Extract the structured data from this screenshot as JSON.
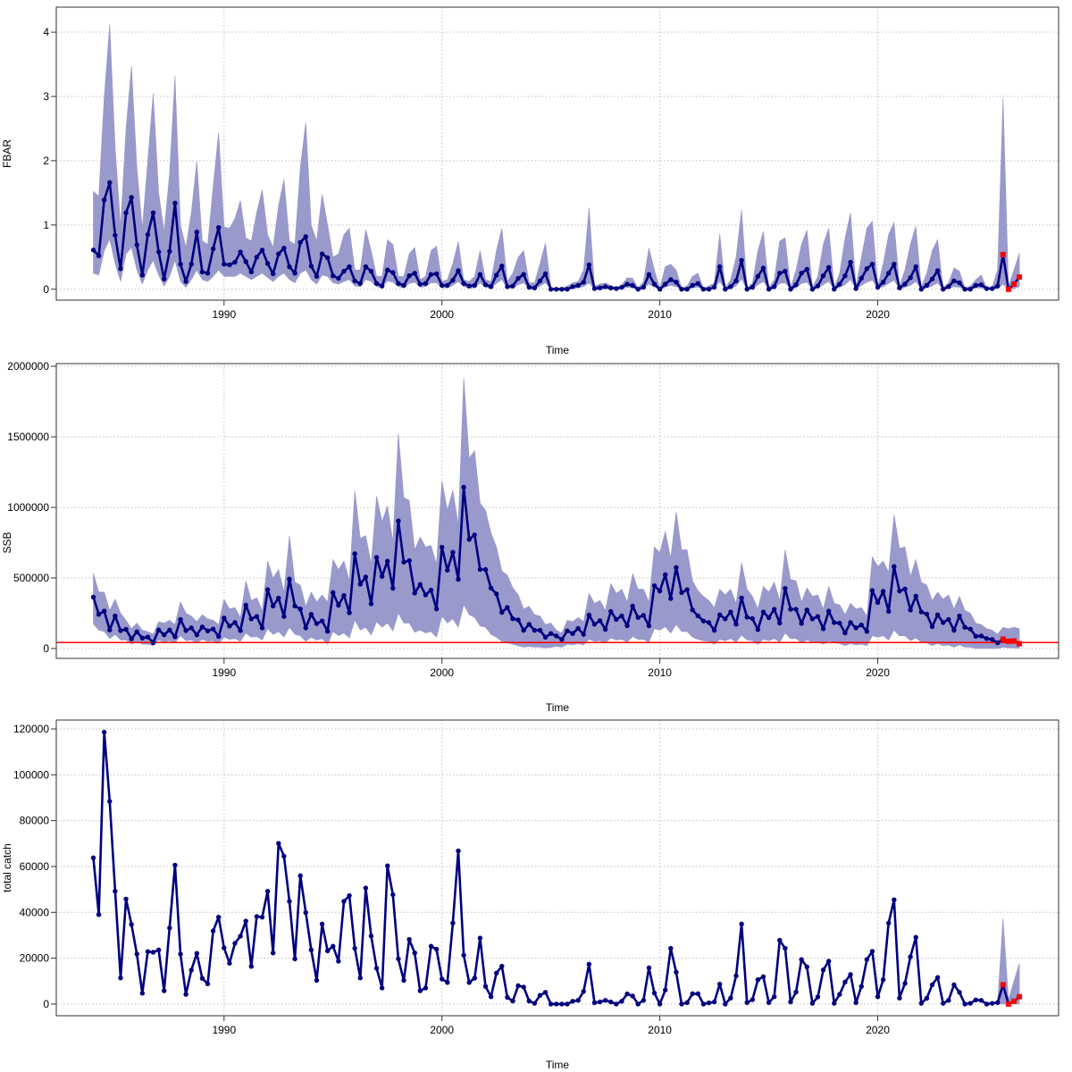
{
  "chart_data": [
    {
      "type": "line",
      "ylabel": "FBAR",
      "xlabel": "Time",
      "xlim": [
        1982.3,
        2028.3
      ],
      "ylim": [
        -0.17,
        4.39
      ],
      "xticks": [
        1990,
        2000,
        2010,
        2020
      ],
      "yticks": [
        0,
        1,
        2,
        3,
        4
      ],
      "grid": true,
      "time_start": 1984,
      "time_step": 0.25,
      "projection_from": 2025.75,
      "colors": {
        "line": "#000080",
        "band": "#9999cc",
        "projection": "#ff0000"
      },
      "values": [
        0.61,
        0.52,
        1.39,
        1.66,
        0.84,
        0.32,
        1.19,
        1.43,
        0.69,
        0.22,
        0.85,
        1.19,
        0.58,
        0.16,
        0.59,
        1.34,
        0.39,
        0.12,
        0.39,
        0.89,
        0.27,
        0.25,
        0.63,
        0.96,
        0.39,
        0.38,
        0.42,
        0.58,
        0.43,
        0.27,
        0.5,
        0.61,
        0.4,
        0.24,
        0.55,
        0.64,
        0.35,
        0.25,
        0.73,
        0.82,
        0.36,
        0.2,
        0.55,
        0.49,
        0.21,
        0.17,
        0.28,
        0.35,
        0.13,
        0.09,
        0.35,
        0.28,
        0.09,
        0.05,
        0.3,
        0.26,
        0.09,
        0.06,
        0.21,
        0.25,
        0.08,
        0.09,
        0.23,
        0.24,
        0.06,
        0.06,
        0.14,
        0.29,
        0.09,
        0.05,
        0.06,
        0.23,
        0.07,
        0.04,
        0.22,
        0.36,
        0.04,
        0.05,
        0.17,
        0.23,
        0.03,
        0.02,
        0.13,
        0.24,
        0,
        0,
        0,
        0,
        0.04,
        0.06,
        0.11,
        0.38,
        0.01,
        0.02,
        0.04,
        0.02,
        0.01,
        0.03,
        0.08,
        0.06,
        0,
        0.03,
        0.23,
        0.08,
        0,
        0.08,
        0.15,
        0.11,
        0,
        0,
        0.06,
        0.09,
        0,
        0,
        0.03,
        0.35,
        0,
        0.04,
        0.13,
        0.45,
        0,
        0.03,
        0.2,
        0.33,
        0,
        0.04,
        0.25,
        0.28,
        0,
        0.07,
        0.25,
        0.31,
        0,
        0.05,
        0.21,
        0.34,
        0,
        0.08,
        0.21,
        0.42,
        0.01,
        0.17,
        0.32,
        0.39,
        0.03,
        0.11,
        0.25,
        0.39,
        0.02,
        0.08,
        0.18,
        0.35,
        0,
        0.06,
        0.16,
        0.29,
        0,
        0.04,
        0.13,
        0.1,
        0,
        0,
        0.06,
        0.07,
        0.01,
        0.01,
        0.05,
        0.54,
        0,
        0.08,
        0.19
      ],
      "upper": [
        1.52,
        1.45,
        3.0,
        4.12,
        2.2,
        0.98,
        2.5,
        3.47,
        1.9,
        0.95,
        2.0,
        3.05,
        1.5,
        0.9,
        1.8,
        3.32,
        1.0,
        0.65,
        1.2,
        1.99,
        0.75,
        0.7,
        1.6,
        2.44,
        0.97,
        0.95,
        1.1,
        1.38,
        0.8,
        0.75,
        1.2,
        1.55,
        0.85,
        0.65,
        1.3,
        1.71,
        0.75,
        0.7,
        1.9,
        2.6,
        1.0,
        0.75,
        1.48,
        1.0,
        0.5,
        0.55,
        0.85,
        0.95,
        0.3,
        0.3,
        0.93,
        0.6,
        0.2,
        0.2,
        0.77,
        0.7,
        0.2,
        0.2,
        0.55,
        0.65,
        0.15,
        0.2,
        0.6,
        0.67,
        0.12,
        0.15,
        0.4,
        0.74,
        0.15,
        0.12,
        0.2,
        0.6,
        0.15,
        0.12,
        0.6,
        0.95,
        0.12,
        0.25,
        0.5,
        0.6,
        0.1,
        0.1,
        0.4,
        0.72,
        0.02,
        0.02,
        0.02,
        0.05,
        0.1,
        0.12,
        0.3,
        1.27,
        0.05,
        0.08,
        0.1,
        0.06,
        0.02,
        0.07,
        0.18,
        0.17,
        0.02,
        0.12,
        0.64,
        0.3,
        0.02,
        0.35,
        0.39,
        0.3,
        0.02,
        0.05,
        0.2,
        0.25,
        0.02,
        0.05,
        0.1,
        0.86,
        0.02,
        0.15,
        0.5,
        1.24,
        0.02,
        0.1,
        0.6,
        0.9,
        0.02,
        0.15,
        0.75,
        0.8,
        0.02,
        0.3,
        0.7,
        0.92,
        0.03,
        0.2,
        0.7,
        0.95,
        0.03,
        0.25,
        0.8,
        1.19,
        0.05,
        0.5,
        0.95,
        1.06,
        0.05,
        0.4,
        0.85,
        1.04,
        0.05,
        0.3,
        0.7,
        0.98,
        0.03,
        0.25,
        0.6,
        0.77,
        0.02,
        0.1,
        0.33,
        0.28,
        0.02,
        0.05,
        0.15,
        0.22,
        0.02,
        0.03,
        0.3,
        2.98,
        0.05,
        0.3,
        0.56
      ],
      "lower": [
        0.25,
        0.22,
        0.6,
        0.78,
        0.4,
        0.12,
        0.55,
        0.65,
        0.3,
        0.08,
        0.3,
        0.45,
        0.22,
        0.05,
        0.2,
        0.45,
        0.12,
        0.03,
        0.15,
        0.3,
        0.15,
        0.12,
        0.2,
        0.3,
        0.2,
        0.2,
        0.2,
        0.25,
        0.2,
        0.15,
        0.2,
        0.25,
        0.18,
        0.12,
        0.2,
        0.25,
        0.15,
        0.1,
        0.25,
        0.3,
        0.15,
        0.08,
        0.22,
        0.2,
        0.1,
        0.08,
        0.12,
        0.15,
        0.05,
        0.04,
        0.15,
        0.12,
        0.04,
        0.02,
        0.13,
        0.11,
        0.04,
        0.02,
        0.09,
        0.11,
        0.03,
        0.04,
        0.1,
        0.1,
        0.02,
        0.02,
        0.06,
        0.12,
        0.04,
        0.02,
        0.02,
        0.1,
        0.03,
        0.01,
        0.09,
        0.15,
        0.01,
        0.02,
        0.07,
        0.1,
        0.01,
        0,
        0.05,
        0.1,
        0,
        0,
        0,
        0,
        0.01,
        0.02,
        0.04,
        0.1,
        0,
        0,
        0.01,
        0,
        0,
        0.01,
        0.03,
        0.02,
        0,
        0.01,
        0.08,
        0.03,
        0,
        0.03,
        0.06,
        0.04,
        0,
        0,
        0.02,
        0.03,
        0,
        0,
        0.01,
        0.12,
        0,
        0.01,
        0.05,
        0.16,
        0,
        0.01,
        0.07,
        0.12,
        0,
        0.01,
        0.09,
        0.1,
        0,
        0.02,
        0.09,
        0.11,
        0,
        0.02,
        0.07,
        0.12,
        0,
        0.03,
        0.07,
        0.15,
        0,
        0.06,
        0.11,
        0.14,
        0.01,
        0.04,
        0.09,
        0.14,
        0,
        0.03,
        0.06,
        0.12,
        0,
        0.02,
        0.05,
        0.1,
        0,
        0.01,
        0.04,
        0.03,
        0,
        0,
        0.02,
        0.02,
        0,
        0,
        0.01,
        0.08,
        0,
        0.01,
        0.04
      ]
    },
    {
      "type": "line",
      "ylabel": "SSB",
      "xlabel": "Time",
      "xlim": [
        1982.3,
        2028.3
      ],
      "ylim": [
        -70000,
        2019000
      ],
      "xticks": [
        1990,
        2000,
        2010,
        2020
      ],
      "yticks": [
        0,
        500000,
        1000000,
        1500000,
        2000000
      ],
      "grid": true,
      "time_start": 1984,
      "time_step": 0.25,
      "projection_from": 2025.75,
      "reference_line": 42000,
      "colors": {
        "line": "#000080",
        "band": "#9999cc",
        "projection": "#ff0000",
        "reference": "#ff0000"
      },
      "values": [
        364000,
        242000,
        265000,
        131000,
        231000,
        127000,
        136000,
        68000,
        119000,
        74000,
        81000,
        42000,
        131000,
        97000,
        131000,
        83000,
        206000,
        127000,
        146000,
        97000,
        153000,
        125000,
        138000,
        85000,
        216000,
        159000,
        184000,
        127000,
        307000,
        210000,
        227000,
        146000,
        417000,
        301000,
        358000,
        227000,
        492000,
        301000,
        280000,
        146000,
        242000,
        176000,
        195000,
        122000,
        397000,
        306000,
        376000,
        253000,
        672000,
        456000,
        507000,
        317000,
        646000,
        511000,
        619000,
        427000,
        904000,
        612000,
        623000,
        393000,
        454000,
        380000,
        414000,
        281000,
        718000,
        555000,
        682000,
        490000,
        1143000,
        773000,
        805000,
        560000,
        560000,
        429000,
        387000,
        256000,
        291000,
        211000,
        203000,
        129000,
        171000,
        129000,
        129000,
        80000,
        106000,
        89000,
        64000,
        125000,
        106000,
        142000,
        100000,
        237000,
        172000,
        197000,
        136000,
        263000,
        206000,
        231000,
        161000,
        301000,
        220000,
        235000,
        161000,
        445000,
        407000,
        523000,
        354000,
        574000,
        396000,
        417000,
        273000,
        231000,
        195000,
        184000,
        129000,
        239000,
        210000,
        259000,
        172000,
        358000,
        222000,
        212000,
        134000,
        259000,
        218000,
        278000,
        180000,
        426000,
        278000,
        278000,
        178000,
        273000,
        210000,
        227000,
        140000,
        265000,
        184000,
        180000,
        110000,
        184000,
        146000,
        167000,
        121000,
        411000,
        326000,
        405000,
        263000,
        581000,
        407000,
        422000,
        273000,
        371000,
        259000,
        244000,
        155000,
        239000,
        184000,
        206000,
        129000,
        231000,
        150000,
        138000,
        87000,
        89000,
        70000,
        64000,
        40000,
        66000,
        51000,
        53000,
        34000
      ],
      "upper": [
        534000,
        400000,
        400000,
        270000,
        350000,
        250000,
        200000,
        140000,
        180000,
        130000,
        120000,
        100000,
        190000,
        180000,
        200000,
        170000,
        330000,
        250000,
        230000,
        190000,
        240000,
        210000,
        200000,
        170000,
        350000,
        280000,
        290000,
        220000,
        480000,
        340000,
        360000,
        270000,
        620000,
        500000,
        560000,
        400000,
        800000,
        470000,
        450000,
        300000,
        400000,
        330000,
        380000,
        330000,
        630000,
        560000,
        620000,
        480000,
        1120000,
        780000,
        800000,
        600000,
        1080000,
        900000,
        1010000,
        760000,
        1520000,
        1070000,
        1050000,
        700000,
        790000,
        720000,
        730000,
        600000,
        1190000,
        980000,
        1120000,
        880000,
        1920000,
        1350000,
        1400000,
        1030000,
        980000,
        820000,
        720000,
        550000,
        520000,
        430000,
        380000,
        280000,
        300000,
        240000,
        230000,
        170000,
        180000,
        130000,
        110000,
        200000,
        190000,
        220000,
        190000,
        390000,
        320000,
        340000,
        270000,
        460000,
        390000,
        420000,
        330000,
        530000,
        420000,
        420000,
        330000,
        720000,
        680000,
        830000,
        640000,
        970000,
        700000,
        700000,
        480000,
        410000,
        370000,
        340000,
        290000,
        420000,
        380000,
        420000,
        320000,
        610000,
        420000,
        370000,
        280000,
        440000,
        400000,
        470000,
        340000,
        700000,
        490000,
        480000,
        330000,
        430000,
        370000,
        380000,
        280000,
        440000,
        320000,
        310000,
        240000,
        320000,
        280000,
        290000,
        230000,
        650000,
        580000,
        620000,
        540000,
        950000,
        710000,
        720000,
        510000,
        630000,
        470000,
        450000,
        340000,
        400000,
        350000,
        380000,
        280000,
        370000,
        270000,
        250000,
        180000,
        170000,
        140000,
        130000,
        100000,
        150000,
        140000,
        150000,
        140000
      ],
      "lower": [
        174000,
        130000,
        120000,
        70000,
        100000,
        60000,
        60000,
        30000,
        50000,
        30000,
        30000,
        20000,
        60000,
        45000,
        55000,
        40000,
        90000,
        55000,
        60000,
        40000,
        65000,
        50000,
        55000,
        35000,
        80000,
        65000,
        70000,
        50000,
        110000,
        80000,
        85000,
        60000,
        140000,
        100000,
        120000,
        80000,
        150000,
        100000,
        90000,
        50000,
        80000,
        60000,
        70000,
        30000,
        120000,
        90000,
        110000,
        75000,
        200000,
        130000,
        150000,
        95000,
        190000,
        150000,
        180000,
        125000,
        250000,
        180000,
        180000,
        115000,
        130000,
        110000,
        120000,
        80000,
        230000,
        180000,
        210000,
        150000,
        310000,
        240000,
        220000,
        160000,
        150000,
        100000,
        80000,
        50000,
        40000,
        30000,
        20000,
        10000,
        15000,
        10000,
        10000,
        5000,
        8000,
        15000,
        10000,
        30000,
        25000,
        35000,
        25000,
        65000,
        50000,
        55000,
        40000,
        75000,
        60000,
        65000,
        45000,
        85000,
        65000,
        65000,
        45000,
        140000,
        130000,
        155000,
        110000,
        170000,
        120000,
        120000,
        80000,
        65000,
        55000,
        50000,
        30000,
        65000,
        55000,
        70000,
        45000,
        95000,
        60000,
        55000,
        30000,
        65000,
        55000,
        70000,
        45000,
        110000,
        70000,
        70000,
        40000,
        60000,
        45000,
        50000,
        30000,
        55000,
        40000,
        35000,
        20000,
        35000,
        25000,
        30000,
        20000,
        90000,
        80000,
        90000,
        60000,
        130000,
        90000,
        90000,
        55000,
        75000,
        45000,
        40000,
        20000,
        35000,
        20000,
        25000,
        10000,
        25000,
        10000,
        10000,
        0,
        0,
        0,
        0,
        0,
        10000,
        5000,
        5000,
        0
      ]
    },
    {
      "type": "line",
      "ylabel": "total catch",
      "xlabel": "Time",
      "xlim": [
        1982.3,
        2028.3
      ],
      "ylim": [
        -5100,
        123900
      ],
      "xticks": [
        1990,
        2000,
        2010,
        2020
      ],
      "yticks": [
        0,
        20000,
        40000,
        60000,
        80000,
        100000,
        120000
      ],
      "grid": true,
      "time_start": 1984,
      "time_step": 0.25,
      "projection_from": 2025.75,
      "colors": {
        "line": "#000080",
        "band": "#9999cc",
        "projection": "#ff0000"
      },
      "values": [
        63800,
        39000,
        118600,
        88400,
        49200,
        11400,
        45800,
        34700,
        21800,
        4700,
        22900,
        22600,
        23600,
        5800,
        33200,
        60600,
        21800,
        4200,
        14800,
        22100,
        11200,
        8800,
        31900,
        37900,
        24500,
        17800,
        26500,
        29600,
        36200,
        16400,
        38200,
        37900,
        49200,
        22300,
        70100,
        64500,
        44800,
        19700,
        56000,
        39900,
        23600,
        10300,
        34900,
        23200,
        25200,
        18700,
        44800,
        47300,
        24300,
        11400,
        50600,
        29700,
        15600,
        7000,
        60300,
        47700,
        19700,
        10300,
        28200,
        22300,
        5800,
        7000,
        25200,
        23900,
        10900,
        9400,
        35300,
        66800,
        21300,
        9400,
        11300,
        28800,
        7700,
        3200,
        13500,
        16500,
        2900,
        1300,
        8000,
        7400,
        1300,
        300,
        3800,
        5100,
        0,
        0,
        0,
        0,
        1200,
        1600,
        5500,
        17400,
        600,
        900,
        1600,
        900,
        0,
        1200,
        4400,
        3500,
        0,
        1600,
        15800,
        4800,
        0,
        6100,
        24300,
        13900,
        0,
        600,
        4500,
        4500,
        0,
        500,
        900,
        8700,
        0,
        2600,
        12300,
        34900,
        600,
        1900,
        10600,
        11900,
        600,
        3200,
        27800,
        24300,
        900,
        5200,
        19400,
        16200,
        300,
        3100,
        14900,
        18700,
        300,
        4200,
        9600,
        12900,
        600,
        7700,
        19400,
        23000,
        3200,
        10600,
        35300,
        45500,
        2600,
        9000,
        20600,
        29100,
        300,
        2500,
        8400,
        11600,
        300,
        1600,
        8400,
        5100,
        0,
        300,
        1800,
        1600,
        0,
        300,
        600,
        8400,
        0,
        1200,
        3200
      ],
      "band": {
        "x": [
          2025.5,
          2025.75,
          2026.0,
          2026.25,
          2026.5
        ],
        "lower": [
          0,
          0,
          0,
          0,
          0
        ],
        "upper": [
          600,
          37300,
          2000,
          10000,
          17800
        ]
      }
    }
  ]
}
